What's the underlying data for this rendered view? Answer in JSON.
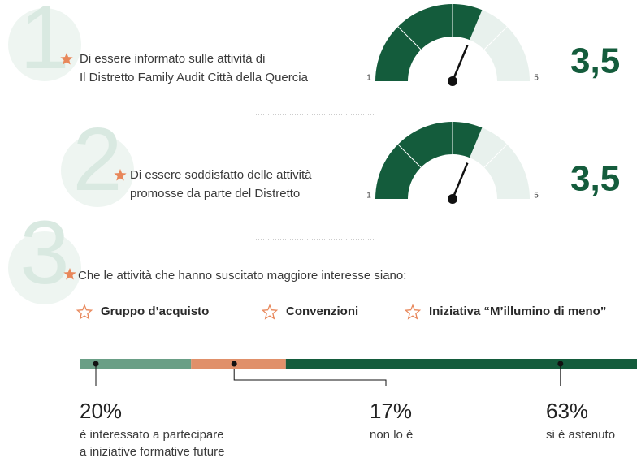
{
  "items": [
    {
      "number": "1",
      "text_lines": [
        "Di essere informato sulle attività di",
        "Il Distretto Family Audit Città della Quercia"
      ],
      "gauge": {
        "min": 1,
        "max": 5,
        "value": 3.5,
        "value_label": "3,5"
      }
    },
    {
      "number": "2",
      "text_lines": [
        "Di essere soddisfatto delle attività",
        "promosse da parte del Distretto"
      ],
      "gauge": {
        "min": 1,
        "max": 5,
        "value": 3.5,
        "value_label": "3,5"
      }
    }
  ],
  "section3": {
    "number": "3",
    "text": "Che le attività che hanno suscitato maggiore interesse siano:",
    "activities": [
      "Gruppo d’acquisto",
      "Convenzioni",
      "Iniziativa “M’illumino di meno”"
    ]
  },
  "breakdown": [
    {
      "value": 20,
      "label": "20%",
      "desc": [
        "è interessato a partecipare",
        "a iniziative formative future"
      ],
      "color": "#6a9f86"
    },
    {
      "value": 17,
      "label": "17%",
      "desc": [
        "non lo è"
      ],
      "color": "#e0906a"
    },
    {
      "value": 63,
      "label": "63%",
      "desc": [
        "si è astenuto"
      ],
      "color": "#145c3c"
    }
  ]
}
